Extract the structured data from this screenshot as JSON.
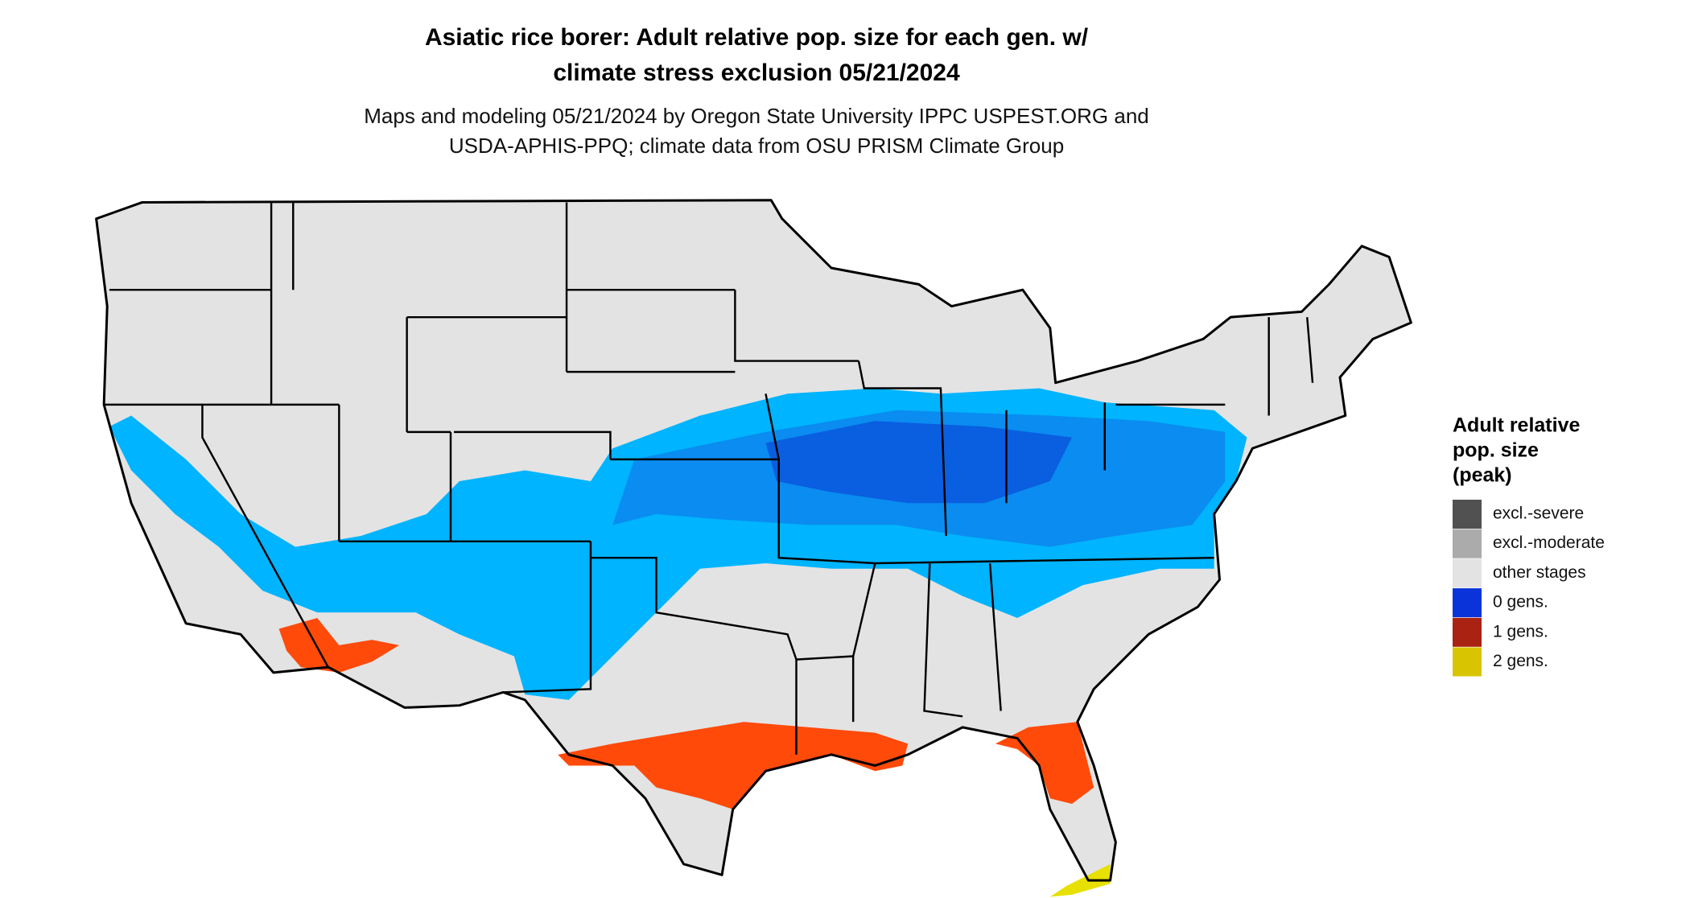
{
  "title_lines": [
    "Asiatic rice borer: Adult relative pop. size for each gen. w/",
    "climate stress exclusion 05/21/2024"
  ],
  "subtitle_lines": [
    "Maps and modeling 05/21/2024 by Oregon State University IPPC USPEST.ORG and",
    "USDA-APHIS-PPQ; climate data from OSU PRISM Climate Group"
  ],
  "legend": {
    "title_lines": [
      "Adult relative",
      "pop. size",
      "(peak)"
    ],
    "items": [
      {
        "label": "excl.-severe",
        "color": "#515151"
      },
      {
        "label": "excl.-moderate",
        "color": "#ababab"
      },
      {
        "label": "other stages",
        "color": "#e3e3e3"
      },
      {
        "label": "0 gens.",
        "color": "#0a34d9"
      },
      {
        "label": "1 gens.",
        "color": "#aa2212"
      },
      {
        "label": "2 gens.",
        "color": "#d8c400"
      }
    ]
  }
}
